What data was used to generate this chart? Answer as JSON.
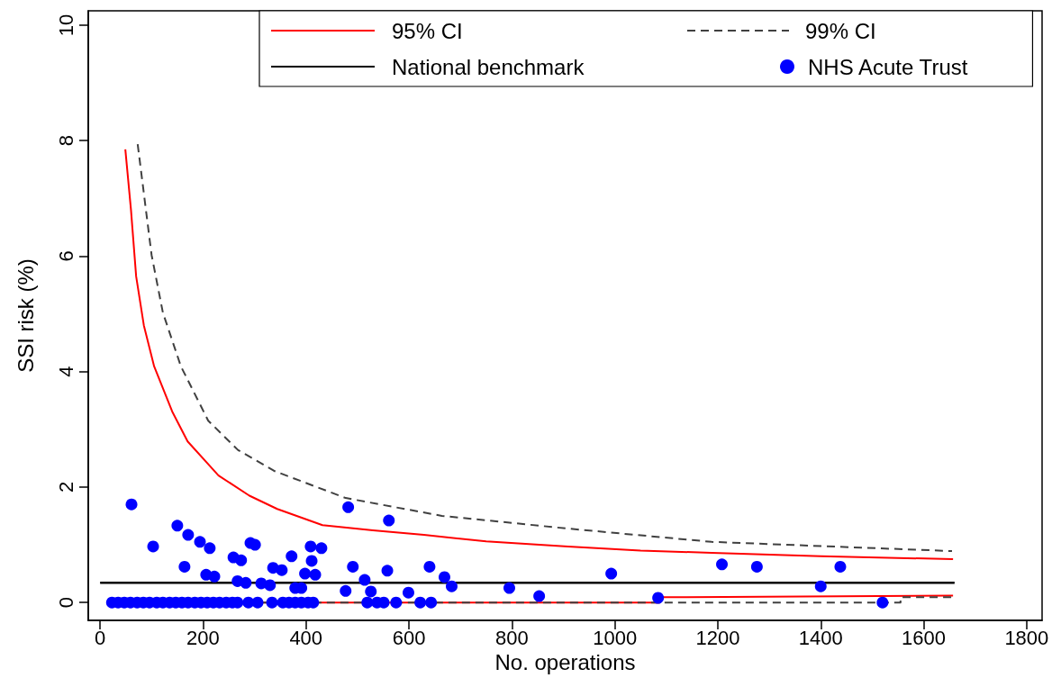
{
  "chart_data": {
    "type": "scatter",
    "xlabel": "No. operations",
    "ylabel": "SSI risk (%)",
    "xlim": [
      -23,
      1830
    ],
    "xticks": [
      0,
      200,
      400,
      600,
      800,
      1000,
      1200,
      1400,
      1600,
      1800
    ],
    "ylim": [
      -0.31,
      10.25
    ],
    "yticks": [
      0,
      2,
      4,
      6,
      8,
      10
    ],
    "grid": false,
    "legend": "top right",
    "series": [
      {
        "name": "95% CI",
        "type": "line",
        "color": "#ff0000",
        "line_style": "solid",
        "marker": "none",
        "x": [
          49,
          60,
          70,
          85,
          105,
          140,
          170,
          230,
          290,
          344,
          432,
          530,
          629,
          750,
          909,
          1050,
          1188,
          1400,
          1657
        ],
        "values": [
          7.85,
          6.8,
          5.65,
          4.8,
          4.09,
          3.31,
          2.79,
          2.2,
          1.85,
          1.62,
          1.34,
          1.25,
          1.17,
          1.06,
          0.97,
          0.9,
          0.86,
          0.8,
          0.75
        ]
      },
      {
        "name": "99% CI",
        "type": "line",
        "color": "#404040",
        "line_style": "dashed",
        "marker": "none",
        "x": [
          73,
          100,
          122,
          157,
          210,
          268,
          338,
          477,
          664,
          909,
          1188,
          1655
        ],
        "values": [
          7.94,
          6.02,
          5.02,
          4.09,
          3.15,
          2.64,
          2.28,
          1.81,
          1.5,
          1.28,
          1.05,
          0.89
        ]
      },
      {
        "name": "National benchmark",
        "type": "line",
        "color": "#000000",
        "line_style": "solid",
        "marker": "none",
        "x": [
          0,
          1660
        ],
        "values": [
          0.34,
          0.34
        ]
      },
      {
        "name": "NHS Acute Trust",
        "color": "#0000ff",
        "marker": "circle",
        "x": [
          23,
          35,
          47,
          59,
          72,
          84,
          96,
          110,
          122,
          135,
          147,
          159,
          171,
          184,
          196,
          208,
          220,
          232,
          245,
          257,
          267,
          288,
          306,
          334,
          355,
          367,
          379,
          391,
          404,
          414,
          519,
          538,
          551,
          575,
          622,
          643,
          1520,
          61,
          103,
          150,
          171,
          194,
          213,
          164,
          206,
          222,
          259,
          274,
          292,
          301,
          267,
          283,
          313,
          330,
          336,
          353,
          372,
          379,
          391,
          398,
          409,
          411,
          418,
          430,
          477,
          482,
          491,
          514,
          526,
          558,
          561,
          599,
          640,
          669,
          683,
          795,
          853,
          993,
          1084,
          1208,
          1276,
          1438,
          1400
        ],
        "values": [
          0,
          0,
          0,
          0,
          0,
          0,
          0,
          0,
          0,
          0,
          0,
          0,
          0,
          0,
          0,
          0,
          0,
          0,
          0,
          0,
          0,
          0,
          0,
          0,
          0,
          0,
          0,
          0,
          0,
          0,
          0,
          0,
          0,
          0,
          0,
          0,
          0,
          1.7,
          0.97,
          1.33,
          1.17,
          1.05,
          0.94,
          0.62,
          0.48,
          0.45,
          0.78,
          0.73,
          1.03,
          1.0,
          0.37,
          0.34,
          0.33,
          0.3,
          0.6,
          0.56,
          0.8,
          0.25,
          0.25,
          0.5,
          0.97,
          0.72,
          0.48,
          0.94,
          0.2,
          1.65,
          0.62,
          0.39,
          0.19,
          0.55,
          1.42,
          0.17,
          0.62,
          0.44,
          0.28,
          0.25,
          0.11,
          0.5,
          0.08,
          0.66,
          0.62,
          0.62,
          0.28
        ]
      },
      {
        "type": "line",
        "color": "#ff0000",
        "line_style": "solid",
        "marker": "none",
        "x": [
          49,
          1087,
          1087,
          1657
        ],
        "values": [
          0,
          0,
          0.09,
          0.12
        ]
      },
      {
        "type": "line",
        "color": "#404040",
        "line_style": "dashed",
        "marker": "none",
        "x": [
          73,
          1555,
          1555,
          1655
        ],
        "values": [
          0,
          0,
          0.09,
          0.09
        ]
      }
    ]
  }
}
